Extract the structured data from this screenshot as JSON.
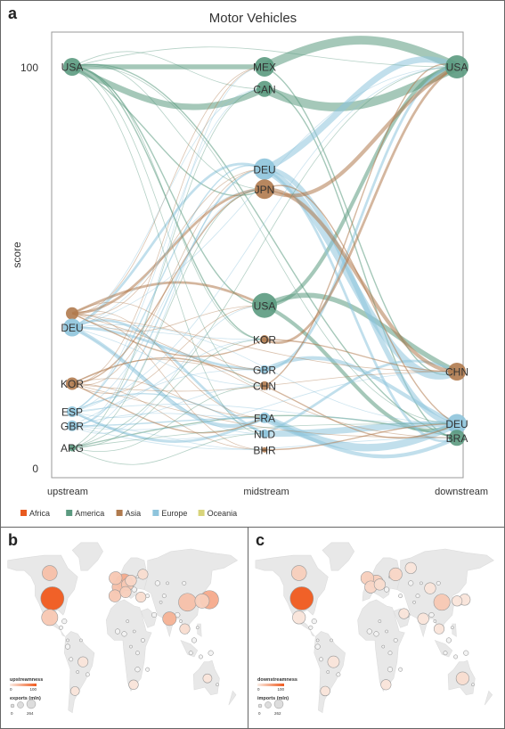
{
  "panels": {
    "a": "a",
    "b": "b",
    "c": "c"
  },
  "chart_data": [
    {
      "type": "network",
      "title": "Motor Vehicles",
      "ylabel": "score",
      "ylim": [
        0,
        100
      ],
      "yticks": [
        0,
        100
      ],
      "columns": [
        "upstream",
        "midstream",
        "downstream"
      ],
      "legend": [
        {
          "name": "Africa",
          "color": "#e85a1f"
        },
        {
          "name": "America",
          "color": "#5b9a80"
        },
        {
          "name": "Asia",
          "color": "#b07a4e"
        },
        {
          "name": "Europe",
          "color": "#8ec4dc"
        },
        {
          "name": "Oceania",
          "color": "#d8d47a"
        }
      ],
      "nodes": [
        {
          "id": "u_usa",
          "label": "USA",
          "column": "upstream",
          "score": 100,
          "region": "America",
          "size": 10
        },
        {
          "id": "u_asia",
          "label": "",
          "column": "upstream",
          "score": 38.5,
          "region": "Asia",
          "size": 7
        },
        {
          "id": "u_deu",
          "label": "DEU",
          "column": "upstream",
          "score": 35,
          "region": "Europe",
          "size": 10
        },
        {
          "id": "u_kor",
          "label": "KOR",
          "column": "upstream",
          "score": 21,
          "region": "Asia",
          "size": 7
        },
        {
          "id": "u_esp",
          "label": "ESP",
          "column": "upstream",
          "score": 14,
          "region": "Europe",
          "size": 6
        },
        {
          "id": "u_gbr",
          "label": "GBR",
          "column": "upstream",
          "score": 10.5,
          "region": "Europe",
          "size": 6
        },
        {
          "id": "u_arg",
          "label": "ARG",
          "column": "upstream",
          "score": 5,
          "region": "America",
          "size": 4
        },
        {
          "id": "m_mex",
          "label": "MEX",
          "column": "midstream",
          "score": 100,
          "region": "America",
          "size": 11
        },
        {
          "id": "m_can",
          "label": "CAN",
          "column": "midstream",
          "score": 94.5,
          "region": "America",
          "size": 9
        },
        {
          "id": "m_deu",
          "label": "DEU",
          "column": "midstream",
          "score": 74.5,
          "region": "Europe",
          "size": 12
        },
        {
          "id": "m_jpn",
          "label": "JPN",
          "column": "midstream",
          "score": 69.5,
          "region": "Asia",
          "size": 11
        },
        {
          "id": "m_usa",
          "label": "USA",
          "column": "midstream",
          "score": 40.5,
          "region": "America",
          "size": 14
        },
        {
          "id": "m_kor",
          "label": "KOR",
          "column": "midstream",
          "score": 32,
          "region": "Asia",
          "size": 5
        },
        {
          "id": "m_gbr",
          "label": "GBR",
          "column": "midstream",
          "score": 24.5,
          "region": "Europe",
          "size": 5
        },
        {
          "id": "m_chn",
          "label": "CHN",
          "column": "midstream",
          "score": 20.5,
          "region": "Asia",
          "size": 5
        },
        {
          "id": "m_fra",
          "label": "FRA",
          "column": "midstream",
          "score": 12.5,
          "region": "Europe",
          "size": 6
        },
        {
          "id": "m_nld",
          "label": "NLD",
          "column": "midstream",
          "score": 8.5,
          "region": "Europe",
          "size": 5
        },
        {
          "id": "m_bhr",
          "label": "BHR",
          "column": "midstream",
          "score": 4.5,
          "region": "Asia",
          "size": 3
        },
        {
          "id": "d_usa",
          "label": "USA",
          "column": "downstream",
          "score": 100,
          "region": "America",
          "size": 13
        },
        {
          "id": "d_chn",
          "label": "CHN",
          "column": "downstream",
          "score": 24,
          "region": "Asia",
          "size": 10
        },
        {
          "id": "d_deu",
          "label": "DEU",
          "column": "downstream",
          "score": 11,
          "region": "Europe",
          "size": 11
        },
        {
          "id": "d_bra",
          "label": "BRA",
          "column": "downstream",
          "score": 7.5,
          "region": "America",
          "size": 9
        }
      ],
      "edges": [
        {
          "source": "u_usa",
          "target": "m_can",
          "region": "America",
          "weight": 5
        },
        {
          "source": "u_usa",
          "target": "m_mex",
          "region": "America",
          "weight": 4
        },
        {
          "source": "m_mex",
          "target": "d_usa",
          "region": "America",
          "weight": 7
        },
        {
          "source": "m_can",
          "target": "d_usa",
          "region": "America",
          "weight": 7
        },
        {
          "source": "m_usa",
          "target": "d_usa",
          "region": "America",
          "weight": 3
        },
        {
          "source": "m_usa",
          "target": "d_chn",
          "region": "America",
          "weight": 4
        },
        {
          "source": "m_usa",
          "target": "d_deu",
          "region": "America",
          "weight": 3
        },
        {
          "source": "u_usa",
          "target": "m_usa",
          "region": "America",
          "weight": 1
        },
        {
          "source": "u_usa",
          "target": "d_bra",
          "region": "America",
          "weight": 1
        },
        {
          "source": "u_usa",
          "target": "m_jpn",
          "region": "America",
          "weight": 1
        },
        {
          "source": "u_usa",
          "target": "m_kor",
          "region": "America",
          "weight": 1
        },
        {
          "source": "u_arg",
          "target": "d_bra",
          "region": "America",
          "weight": 1
        },
        {
          "source": "m_mex",
          "target": "d_chn",
          "region": "America",
          "weight": 1
        },
        {
          "source": "m_can",
          "target": "d_bra",
          "region": "America",
          "weight": 1
        },
        {
          "source": "m_deu",
          "target": "d_usa",
          "region": "Europe",
          "weight": 5
        },
        {
          "source": "m_deu",
          "target": "d_chn",
          "region": "Europe",
          "weight": 6
        },
        {
          "source": "m_deu",
          "target": "d_deu",
          "region": "Europe",
          "weight": 4
        },
        {
          "source": "u_deu",
          "target": "m_deu",
          "region": "Europe",
          "weight": 2
        },
        {
          "source": "u_deu",
          "target": "m_fra",
          "region": "Europe",
          "weight": 3
        },
        {
          "source": "u_deu",
          "target": "m_gbr",
          "region": "Europe",
          "weight": 2
        },
        {
          "source": "u_deu",
          "target": "m_nld",
          "region": "Europe",
          "weight": 2
        },
        {
          "source": "u_esp",
          "target": "m_fra",
          "region": "Europe",
          "weight": 2
        },
        {
          "source": "u_gbr",
          "target": "m_deu",
          "region": "Europe",
          "weight": 1
        },
        {
          "source": "u_esp",
          "target": "m_deu",
          "region": "Europe",
          "weight": 1
        },
        {
          "source": "m_fra",
          "target": "d_deu",
          "region": "Europe",
          "weight": 6
        },
        {
          "source": "m_nld",
          "target": "d_deu",
          "region": "Europe",
          "weight": 5
        },
        {
          "source": "m_gbr",
          "target": "d_deu",
          "region": "Europe",
          "weight": 3
        },
        {
          "source": "m_fra",
          "target": "d_bra",
          "region": "Europe",
          "weight": 3
        },
        {
          "source": "m_gbr",
          "target": "d_usa",
          "region": "Europe",
          "weight": 2
        },
        {
          "source": "m_nld",
          "target": "d_chn",
          "region": "Europe",
          "weight": 2
        },
        {
          "source": "m_deu",
          "target": "d_bra",
          "region": "Europe",
          "weight": 2
        },
        {
          "source": "u_gbr",
          "target": "m_fra",
          "region": "Europe",
          "weight": 1
        },
        {
          "source": "u_esp",
          "target": "m_nld",
          "region": "Europe",
          "weight": 1
        },
        {
          "source": "m_jpn",
          "target": "d_usa",
          "region": "Asia",
          "weight": 3
        },
        {
          "source": "m_jpn",
          "target": "d_chn",
          "region": "Asia",
          "weight": 3
        },
        {
          "source": "m_jpn",
          "target": "d_deu",
          "region": "Asia",
          "weight": 1
        },
        {
          "source": "m_kor",
          "target": "d_usa",
          "region": "Asia",
          "weight": 2
        },
        {
          "source": "m_kor",
          "target": "d_chn",
          "region": "Asia",
          "weight": 1
        },
        {
          "source": "m_chn",
          "target": "d_usa",
          "region": "Asia",
          "weight": 1
        },
        {
          "source": "m_chn",
          "target": "d_deu",
          "region": "Asia",
          "weight": 1
        },
        {
          "source": "u_asia",
          "target": "m_jpn",
          "region": "Asia",
          "weight": 2
        },
        {
          "source": "u_asia",
          "target": "m_usa",
          "region": "Asia",
          "weight": 2
        },
        {
          "source": "u_asia",
          "target": "m_kor",
          "region": "Asia",
          "weight": 1
        },
        {
          "source": "u_kor",
          "target": "m_jpn",
          "region": "Asia",
          "weight": 1
        },
        {
          "source": "u_kor",
          "target": "m_chn",
          "region": "Asia",
          "weight": 1
        },
        {
          "source": "u_kor",
          "target": "m_fra",
          "region": "Asia",
          "weight": 1
        },
        {
          "source": "m_bhr",
          "target": "d_deu",
          "region": "Asia",
          "weight": 1
        }
      ]
    },
    {
      "type": "map",
      "legend_title": "upstreamness",
      "scale_ticks": [
        "0",
        "100"
      ],
      "size_title": "exports (mln)",
      "size_ticks": [
        "0",
        "264"
      ],
      "bubbles": [
        {
          "lon": -98,
          "lat": 38,
          "value": 100,
          "size": 264
        },
        {
          "lon": -102,
          "lat": 58,
          "value": 30,
          "size": 90
        },
        {
          "lon": -102,
          "lat": 23,
          "value": 25,
          "size": 110
        },
        {
          "lon": 10,
          "lat": 51,
          "value": 45,
          "size": 110
        },
        {
          "lon": 2,
          "lat": 47,
          "value": 30,
          "size": 70
        },
        {
          "lon": -3,
          "lat": 54,
          "value": 25,
          "size": 60
        },
        {
          "lon": 15,
          "lat": 49,
          "value": 25,
          "size": 50
        },
        {
          "lon": 20,
          "lat": 52,
          "value": 15,
          "size": 40
        },
        {
          "lon": 12,
          "lat": 43,
          "value": 20,
          "size": 40
        },
        {
          "lon": -4,
          "lat": 40,
          "value": 25,
          "size": 50
        },
        {
          "lon": 38,
          "lat": 57,
          "value": 10,
          "size": 30
        },
        {
          "lon": 78,
          "lat": 22,
          "value": 40,
          "size": 70
        },
        {
          "lon": 105,
          "lat": 35,
          "value": 30,
          "size": 140
        },
        {
          "lon": 138,
          "lat": 37,
          "value": 45,
          "size": 150
        },
        {
          "lon": 127,
          "lat": 36,
          "value": 20,
          "size": 80
        },
        {
          "lon": 35,
          "lat": 39,
          "value": 10,
          "size": 30
        },
        {
          "lon": -52,
          "lat": -12,
          "value": 5,
          "size": 30
        },
        {
          "lon": -64,
          "lat": -35,
          "value": 5,
          "size": 20
        },
        {
          "lon": 24,
          "lat": -30,
          "value": 5,
          "size": 25
        },
        {
          "lon": 135,
          "lat": -25,
          "value": 5,
          "size": 20
        },
        {
          "lon": 101,
          "lat": 14,
          "value": 10,
          "size": 30
        }
      ]
    },
    {
      "type": "map",
      "legend_title": "downstreamness",
      "scale_ticks": [
        "0",
        "100"
      ],
      "size_title": "imports (mln)",
      "size_ticks": [
        "0",
        "262"
      ],
      "bubbles": [
        {
          "lon": -98,
          "lat": 38,
          "value": 100,
          "size": 262
        },
        {
          "lon": -102,
          "lat": 58,
          "value": 20,
          "size": 90
        },
        {
          "lon": -102,
          "lat": 23,
          "value": 5,
          "size": 60
        },
        {
          "lon": 10,
          "lat": 51,
          "value": 20,
          "size": 70
        },
        {
          "lon": 2,
          "lat": 47,
          "value": 15,
          "size": 50
        },
        {
          "lon": -3,
          "lat": 54,
          "value": 20,
          "size": 60
        },
        {
          "lon": 15,
          "lat": 49,
          "value": 10,
          "size": 40
        },
        {
          "lon": 38,
          "lat": 57,
          "value": 15,
          "size": 60
        },
        {
          "lon": 60,
          "lat": 62,
          "value": 5,
          "size": 40
        },
        {
          "lon": 105,
          "lat": 35,
          "value": 25,
          "size": 110
        },
        {
          "lon": 88,
          "lat": 46,
          "value": 5,
          "size": 40
        },
        {
          "lon": 78,
          "lat": 22,
          "value": 5,
          "size": 40
        },
        {
          "lon": 50,
          "lat": 26,
          "value": 5,
          "size": 30
        },
        {
          "lon": 138,
          "lat": 37,
          "value": 5,
          "size": 40
        },
        {
          "lon": 127,
          "lat": 36,
          "value": 5,
          "size": 30
        },
        {
          "lon": -52,
          "lat": -12,
          "value": 5,
          "size": 45
        },
        {
          "lon": 24,
          "lat": -30,
          "value": 5,
          "size": 30
        },
        {
          "lon": 135,
          "lat": -25,
          "value": 10,
          "size": 60
        },
        {
          "lon": 101,
          "lat": 14,
          "value": 5,
          "size": 30
        },
        {
          "lon": -64,
          "lat": -35,
          "value": 5,
          "size": 25
        }
      ]
    }
  ]
}
